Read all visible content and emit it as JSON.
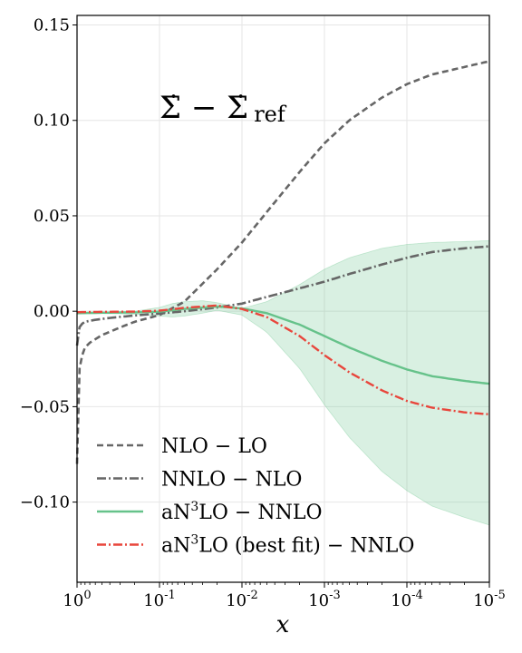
{
  "chart_data": {
    "type": "line",
    "xlabel": "x",
    "ylabel": "",
    "xscale": "log-reversed",
    "xlim": [
      1.0,
      1e-05
    ],
    "ylim": [
      -0.142,
      0.155
    ],
    "grid": true,
    "legend_position": "lower-left",
    "annotation": "Σ̇ − Σ̇ ref",
    "annotation_parts": {
      "main": "Σ̇ − Σ̇",
      "sub": "ref"
    },
    "xticks": [
      {
        "value": 1,
        "base": "10",
        "exp": "0"
      },
      {
        "value": 0.1,
        "base": "10",
        "exp": "-1"
      },
      {
        "value": 0.01,
        "base": "10",
        "exp": "-2"
      },
      {
        "value": 0.001,
        "base": "10",
        "exp": "-3"
      },
      {
        "value": 0.0001,
        "base": "10",
        "exp": "-4"
      },
      {
        "value": 1e-05,
        "base": "10",
        "exp": "-5"
      }
    ],
    "yticks": [
      {
        "value": 0.15,
        "label": "0.15"
      },
      {
        "value": 0.1,
        "label": "0.10"
      },
      {
        "value": 0.05,
        "label": "0.05"
      },
      {
        "value": 0.0,
        "label": "0.00"
      },
      {
        "value": -0.05,
        "label": "−0.05"
      },
      {
        "value": -0.1,
        "label": "−0.10"
      }
    ],
    "series": [
      {
        "name": "NLO − LO",
        "legend": {
          "pre": "NLO − LO",
          "sup": "",
          "post": ""
        },
        "color": "#666666",
        "dash": "7,4",
        "width": 2.6,
        "x": [
          1.0,
          0.98,
          0.95,
          0.9,
          0.8,
          0.7,
          0.5,
          0.3,
          0.2,
          0.1,
          0.05,
          0.02,
          0.01,
          0.005,
          0.002,
          0.001,
          0.0005,
          0.0002,
          0.0001,
          5e-05,
          2e-05,
          1e-05
        ],
        "y": [
          -0.08,
          -0.046,
          -0.033,
          -0.025,
          -0.019,
          -0.0165,
          -0.0125,
          -0.0085,
          -0.0055,
          -0.002,
          0.005,
          0.022,
          0.036,
          0.052,
          0.073,
          0.088,
          0.1,
          0.112,
          0.119,
          0.124,
          0.128,
          0.131
        ]
      },
      {
        "name": "NNLO − NLO",
        "legend": {
          "pre": "NNLO − NLO",
          "sup": "",
          "post": ""
        },
        "color": "#666666",
        "dash": "10,3,2,3",
        "width": 2.6,
        "x": [
          1.0,
          0.97,
          0.9,
          0.8,
          0.6,
          0.4,
          0.2,
          0.1,
          0.05,
          0.02,
          0.01,
          0.005,
          0.002,
          0.001,
          0.0005,
          0.0002,
          0.0001,
          5e-05,
          2e-05,
          1e-05
        ],
        "y": [
          -0.018,
          -0.01,
          -0.007,
          -0.0055,
          -0.0045,
          -0.0035,
          -0.0022,
          -0.0012,
          0.0,
          0.002,
          0.004,
          0.0075,
          0.012,
          0.0155,
          0.0195,
          0.0245,
          0.028,
          0.031,
          0.033,
          0.034
        ]
      },
      {
        "name": "aN3LO − NNLO",
        "legend": {
          "pre": "aN",
          "sup": "3",
          "post": "LO − NNLO"
        },
        "color": "#66c28a",
        "dash": "",
        "width": 2.4,
        "x": [
          1.0,
          0.5,
          0.2,
          0.1,
          0.05,
          0.02,
          0.01,
          0.005,
          0.002,
          0.001,
          0.0005,
          0.0002,
          0.0001,
          5e-05,
          2e-05,
          1e-05
        ],
        "y": [
          -0.001,
          -0.0008,
          -0.0006,
          -0.0002,
          0.0012,
          0.0025,
          0.0015,
          -0.001,
          -0.007,
          -0.013,
          -0.019,
          -0.026,
          -0.0305,
          -0.034,
          -0.0365,
          -0.038
        ]
      },
      {
        "name": "aN3LO (best fit) − NNLO",
        "legend": {
          "pre": "aN",
          "sup": "3",
          "post": "LO (best fit) − NNLO"
        },
        "color": "#e8463c",
        "dash": "10,3,2,3",
        "width": 2.4,
        "x": [
          1.0,
          0.5,
          0.2,
          0.1,
          0.05,
          0.02,
          0.01,
          0.005,
          0.002,
          0.001,
          0.0005,
          0.0002,
          0.0001,
          5e-05,
          2e-05,
          1e-05
        ],
        "y": [
          -0.0005,
          -0.0003,
          -0.0002,
          0.0003,
          0.0018,
          0.003,
          0.0012,
          -0.003,
          -0.013,
          -0.023,
          -0.032,
          -0.0415,
          -0.047,
          -0.0505,
          -0.053,
          -0.054
        ]
      }
    ],
    "band": {
      "series": "aN3LO − NNLO",
      "color": "#66c28a",
      "opacity": 0.25,
      "x": [
        1.0,
        0.5,
        0.2,
        0.1,
        0.07,
        0.05,
        0.03,
        0.02,
        0.01,
        0.005,
        0.002,
        0.001,
        0.0005,
        0.0002,
        0.0001,
        5e-05,
        2e-05,
        1e-05
      ],
      "upper": [
        -0.0005,
        -0.0004,
        0.0,
        0.002,
        0.004,
        0.005,
        0.0055,
        0.0045,
        0.0015,
        0.005,
        0.014,
        0.022,
        0.028,
        0.033,
        0.035,
        0.036,
        0.0365,
        0.037
      ],
      "lower": [
        -0.0015,
        -0.0012,
        -0.0015,
        -0.0025,
        -0.003,
        -0.0025,
        -0.001,
        0.0005,
        -0.002,
        -0.011,
        -0.03,
        -0.049,
        -0.066,
        -0.084,
        -0.094,
        -0.102,
        -0.108,
        -0.112
      ]
    }
  }
}
